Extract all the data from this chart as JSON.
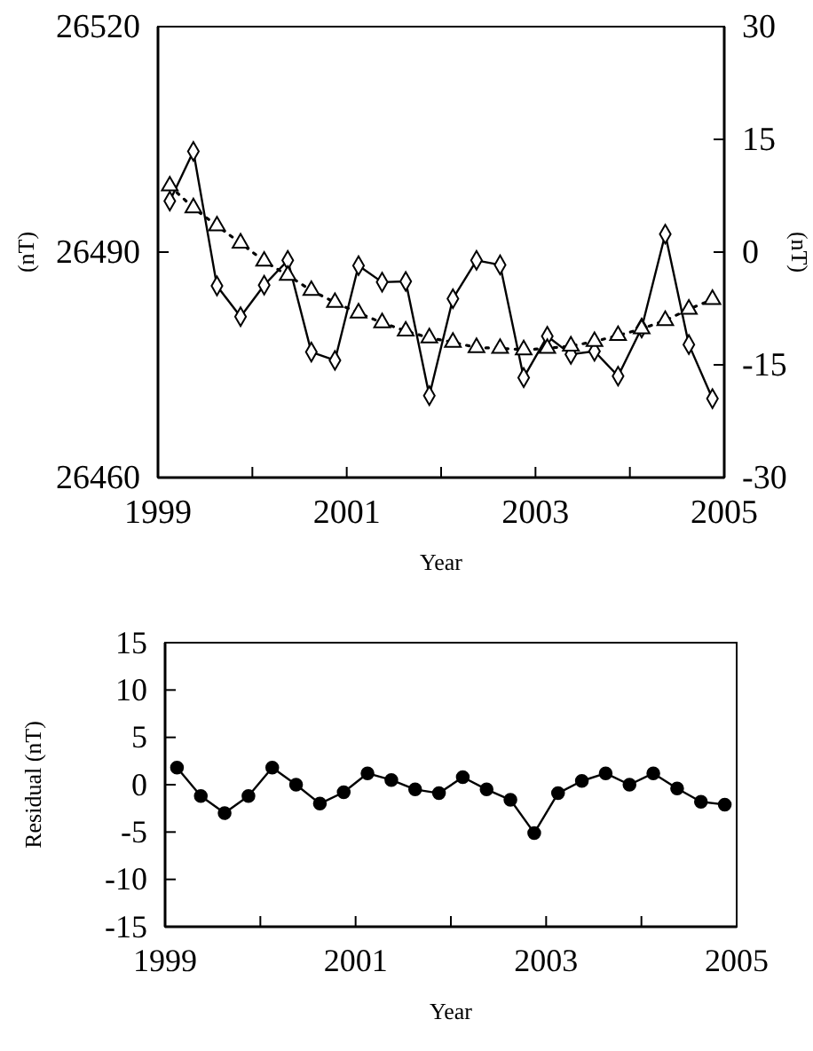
{
  "chart_data": [
    {
      "type": "line",
      "xlabel": "Year",
      "ylabel": "(nT)",
      "y2label": "(nT)",
      "xlim": [
        1999,
        2005
      ],
      "xticks": [
        1999,
        {
          "value": 2000,
          "label": null
        },
        2001,
        {
          "value": 2002,
          "label": null
        },
        2003,
        {
          "value": 2004,
          "label": null
        },
        2005
      ],
      "ylim": [
        26460,
        26520
      ],
      "yticks": [
        26460,
        26490,
        26520
      ],
      "y2lim": [
        -30,
        30
      ],
      "y2ticks": [
        -30,
        -15,
        0,
        15,
        30
      ],
      "x": [
        1999.125,
        1999.375,
        1999.625,
        1999.875,
        2000.125,
        2000.375,
        2000.625,
        2000.875,
        2001.125,
        2001.375,
        2001.625,
        2001.875,
        2002.125,
        2002.375,
        2002.625,
        2002.875,
        2003.125,
        2003.375,
        2003.625,
        2003.875,
        2004.125,
        2004.375,
        2004.625,
        2004.875
      ],
      "series": [
        {
          "color": "#000000",
          "marker": "diamond",
          "line_style": "solid",
          "values": [
            26496.8,
            26503.4,
            26485.5,
            26481.4,
            26485.6,
            26488.9,
            26476.7,
            26475.6,
            26488.2,
            26486.0,
            26486.1,
            26470.9,
            26483.8,
            26488.9,
            26488.3,
            26473.3,
            26478.8,
            26476.4,
            26476.8,
            26473.5,
            26479.9,
            26492.4,
            26477.7,
            26470.5
          ]
        },
        {
          "color": "#000000",
          "marker": "triangle",
          "line_style": "dotted",
          "axis": "y2",
          "values": [
            8.8,
            5.9,
            3.5,
            1.2,
            -1.2,
            -3.1,
            -5.1,
            -6.7,
            -8.1,
            -9.4,
            -10.5,
            -11.4,
            -12.0,
            -12.7,
            -12.8,
            -13.0,
            -12.8,
            -12.5,
            -11.9,
            -11.1,
            -10.2,
            -9.1,
            -7.6,
            -6.3
          ]
        }
      ]
    },
    {
      "type": "line",
      "xlabel": "Year",
      "ylabel": "Residual  (nT)",
      "xlim": [
        1999,
        2005
      ],
      "xticks": [
        1999,
        {
          "value": 2000,
          "label": null
        },
        2001,
        {
          "value": 2002,
          "label": null
        },
        2003,
        {
          "value": 2004,
          "label": null
        },
        2005
      ],
      "ylim": [
        -15,
        15
      ],
      "yticks": [
        -15,
        -10,
        -5,
        0,
        5,
        10,
        15
      ],
      "marker": "circle",
      "line_style": "solid",
      "x": [
        1999.125,
        1999.375,
        1999.625,
        1999.875,
        2000.125,
        2000.375,
        2000.625,
        2000.875,
        2001.125,
        2001.375,
        2001.625,
        2001.875,
        2002.125,
        2002.375,
        2002.625,
        2002.875,
        2003.125,
        2003.375,
        2003.625,
        2003.875,
        2004.125,
        2004.375,
        2004.625,
        2004.875
      ],
      "series": [
        {
          "color": "#000000",
          "values": [
            1.8,
            -1.2,
            -3.0,
            -1.2,
            1.8,
            0,
            -2.0,
            -0.8,
            1.2,
            0.5,
            -0.5,
            -0.9,
            0.8,
            -0.5,
            -1.6,
            -5.1,
            -0.9,
            0.4,
            1.2,
            0,
            1.2,
            -0.4,
            -1.8,
            -2.1
          ]
        }
      ]
    }
  ]
}
